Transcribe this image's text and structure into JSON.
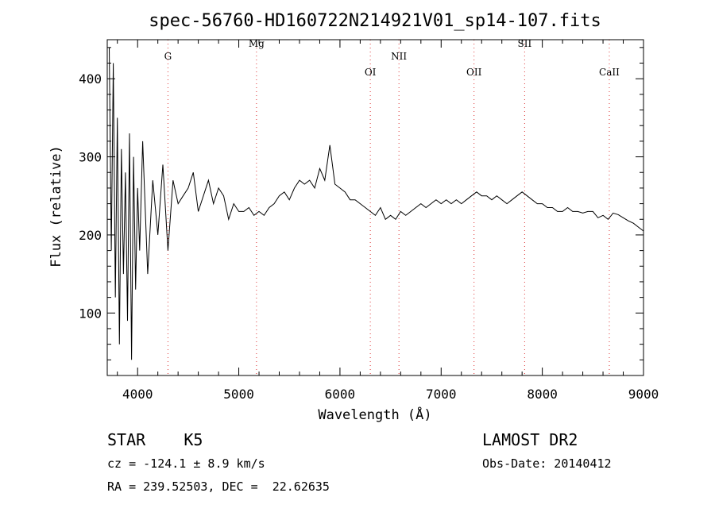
{
  "chart_data": {
    "type": "line",
    "title": "spec-56760-HD160722N214921V01_sp14-107.fits",
    "xlabel": "Wavelength (Å)",
    "ylabel": "Flux (relative)",
    "xlim": [
      3700,
      9000
    ],
    "ylim": [
      20,
      450
    ],
    "xticks": [
      4000,
      5000,
      6000,
      7000,
      8000,
      9000
    ],
    "yticks": [
      100,
      200,
      300,
      400
    ],
    "grid": false,
    "lines": [
      {
        "label": "G",
        "x": 4300
      },
      {
        "label": "Mg",
        "x": 5175
      },
      {
        "label": "OI",
        "x": 6300
      },
      {
        "label": "NII",
        "x": 6583
      },
      {
        "label": "OII",
        "x": 7325
      },
      {
        "label": "SII",
        "x": 7825
      },
      {
        "label": "CaII",
        "x": 8662
      }
    ],
    "series": [
      {
        "x": [
          3720,
          3740,
          3760,
          3780,
          3800,
          3820,
          3840,
          3860,
          3880,
          3900,
          3920,
          3940,
          3960,
          3980,
          4000,
          4020,
          4050,
          4100,
          4150,
          4200,
          4250,
          4300,
          4350,
          4400,
          4450,
          4500,
          4550,
          4600,
          4650,
          4700,
          4750,
          4800,
          4850,
          4900,
          4950,
          5000,
          5050,
          5100,
          5150,
          5200,
          5250,
          5300,
          5350,
          5400,
          5450,
          5500,
          5550,
          5600,
          5650,
          5700,
          5750,
          5800,
          5850,
          5900,
          5950,
          6000,
          6050,
          6100,
          6150,
          6200,
          6250,
          6300,
          6350,
          6400,
          6450,
          6500,
          6550,
          6600,
          6650,
          6700,
          6750,
          6800,
          6850,
          6900,
          6950,
          7000,
          7050,
          7100,
          7150,
          7200,
          7250,
          7300,
          7350,
          7400,
          7450,
          7500,
          7550,
          7600,
          7650,
          7700,
          7750,
          7800,
          7850,
          7900,
          7950,
          8000,
          8050,
          8100,
          8150,
          8200,
          8250,
          8300,
          8350,
          8400,
          8450,
          8500,
          8550,
          8600,
          8650,
          8700,
          8750,
          8800,
          8850,
          8900,
          8950,
          9000
        ],
        "y": [
          440,
          180,
          420,
          120,
          350,
          60,
          310,
          150,
          280,
          90,
          330,
          40,
          300,
          130,
          260,
          180,
          320,
          150,
          270,
          200,
          290,
          180,
          270,
          240,
          250,
          260,
          280,
          230,
          250,
          270,
          240,
          260,
          250,
          220,
          240,
          230,
          230,
          235,
          225,
          230,
          225,
          235,
          240,
          250,
          255,
          245,
          260,
          270,
          265,
          270,
          260,
          285,
          270,
          315,
          265,
          260,
          255,
          245,
          245,
          240,
          235,
          230,
          225,
          235,
          220,
          225,
          220,
          230,
          225,
          230,
          235,
          240,
          235,
          240,
          245,
          240,
          245,
          240,
          245,
          240,
          245,
          250,
          255,
          250,
          250,
          245,
          250,
          245,
          240,
          245,
          250,
          255,
          250,
          245,
          240,
          240,
          235,
          235,
          230,
          230,
          235,
          230,
          230,
          228,
          230,
          230,
          222,
          225,
          220,
          228,
          226,
          222,
          218,
          215,
          210,
          205
        ]
      }
    ]
  },
  "info": {
    "class_line": "STAR    K5",
    "survey": "LAMOST DR2",
    "cz": "cz = -124.1 ± 8.9 km/s",
    "obs_date": "Obs-Date: 20140412",
    "coords": "RA = 239.52503, DEC =  22.62635"
  }
}
